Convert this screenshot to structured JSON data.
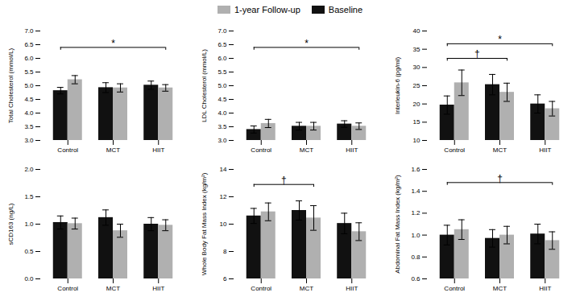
{
  "chart_data": [
    {
      "type": "bar",
      "ylabel": "Total Cholesterol (mmol/L)",
      "legend": "top",
      "categories": [
        "Control",
        "MCT",
        "HIIT"
      ],
      "series": [
        {
          "name": "Baseline",
          "color": "#111111",
          "values": [
            4.82,
            4.93,
            5.02
          ],
          "errors": [
            0.12,
            0.18,
            0.15
          ]
        },
        {
          "name": "1-year Follow-up",
          "color": "#b0b0b0",
          "values": [
            5.22,
            4.92,
            4.92
          ],
          "errors": [
            0.15,
            0.15,
            0.12
          ]
        }
      ],
      "ylim": [
        3.0,
        7.0
      ],
      "yticks": [
        {
          "value": 3.0,
          "label": "3.0"
        },
        3.5,
        {
          "value": 4.0,
          "label": "4.0"
        },
        4.5,
        {
          "value": 5.0,
          "label": "5.0"
        },
        5.5,
        {
          "value": 6.0,
          "label": "6.0"
        },
        6.5,
        {
          "value": 7.0,
          "label": "7.0"
        }
      ],
      "brackets": [
        {
          "from": "Control",
          "to": "HIIT",
          "y": 6.4,
          "label": "*"
        }
      ]
    },
    {
      "type": "bar",
      "ylabel": "LDL Cholesterol (mmol/L)",
      "categories": [
        "Control",
        "MCT",
        "HIIT"
      ],
      "series": [
        {
          "name": "Baseline",
          "color": "#111111",
          "values": [
            3.4,
            3.52,
            3.6
          ],
          "errors": [
            0.13,
            0.14,
            0.12
          ]
        },
        {
          "name": "1-year Follow-up",
          "color": "#b0b0b0",
          "values": [
            3.62,
            3.52,
            3.52
          ],
          "errors": [
            0.15,
            0.14,
            0.12
          ]
        }
      ],
      "ylim": [
        3.0,
        7.0
      ],
      "yticks": [
        {
          "value": 3.0,
          "label": "3.0"
        },
        3.5,
        {
          "value": 4.0,
          "label": "4.0"
        },
        4.5,
        {
          "value": 5.0,
          "label": "5.0"
        },
        5.5,
        {
          "value": 6.0,
          "label": "6.0"
        },
        6.5,
        {
          "value": 7.0,
          "label": "7.0"
        }
      ],
      "brackets": [
        {
          "from": "Control",
          "to": "HIIT",
          "y": 6.4,
          "label": "*"
        }
      ]
    },
    {
      "type": "bar",
      "ylabel": "Interleukin-6 (pg/ml)",
      "categories": [
        "Control",
        "MCT",
        "HIIT"
      ],
      "series": [
        {
          "name": "Baseline",
          "color": "#111111",
          "values": [
            19.7,
            25.3,
            20.0
          ],
          "errors": [
            2.5,
            2.8,
            2.5
          ]
        },
        {
          "name": "1-year Follow-up",
          "color": "#b0b0b0",
          "values": [
            25.8,
            23.2,
            18.7
          ],
          "errors": [
            3.5,
            2.5,
            2.0
          ]
        }
      ],
      "ylim": [
        10,
        40
      ],
      "yticks": [
        10,
        15,
        20,
        25,
        30,
        35,
        40
      ],
      "brackets": [
        {
          "from": "Control",
          "to": "HIIT",
          "y": 36.5,
          "label": "*"
        },
        {
          "from": "Control",
          "to": "MCT",
          "y": 32.5,
          "label": "†"
        }
      ]
    },
    {
      "type": "bar",
      "ylabel": "sCD163 (ng/L)",
      "categories": [
        "Control",
        "MCT",
        "HIIT"
      ],
      "series": [
        {
          "name": "Baseline",
          "color": "#111111",
          "values": [
            1.03,
            1.12,
            1.0
          ],
          "errors": [
            0.12,
            0.14,
            0.12
          ]
        },
        {
          "name": "1-year Follow-up",
          "color": "#b0b0b0",
          "values": [
            1.01,
            0.88,
            0.98
          ],
          "errors": [
            0.1,
            0.12,
            0.1
          ]
        }
      ],
      "ylim": [
        0.0,
        2.0
      ],
      "yticks": [
        {
          "value": 0.0,
          "label": "0.0"
        },
        0.5,
        {
          "value": 1.0,
          "label": "1.0"
        },
        1.5,
        {
          "value": 2.0,
          "label": "2.0"
        }
      ],
      "brackets": []
    },
    {
      "type": "bar",
      "ylabel": "Whole Body Fat Mass Index (kg/m²)",
      "categories": [
        "Control",
        "MCT",
        "HIIT"
      ],
      "series": [
        {
          "name": "Baseline",
          "color": "#111111",
          "values": [
            10.6,
            11.0,
            10.05
          ],
          "errors": [
            0.55,
            0.7,
            0.75
          ]
        },
        {
          "name": "1-year Follow-up",
          "color": "#b0b0b0",
          "values": [
            10.9,
            10.45,
            9.45
          ],
          "errors": [
            0.65,
            0.9,
            0.65
          ]
        }
      ],
      "ylim": [
        6,
        14
      ],
      "yticks": [
        6,
        8,
        10,
        12,
        14
      ],
      "brackets": [
        {
          "from": "Control",
          "to": "MCT",
          "y": 12.9,
          "label": "†"
        }
      ]
    },
    {
      "type": "bar",
      "ylabel": "Abdominal Fat Mass Index (kg/m²)",
      "categories": [
        "Control",
        "MCT",
        "HIIT"
      ],
      "series": [
        {
          "name": "Baseline",
          "color": "#111111",
          "values": [
            1.0,
            0.97,
            1.01
          ],
          "errors": [
            0.09,
            0.08,
            0.09
          ]
        },
        {
          "name": "1-year Follow-up",
          "color": "#b0b0b0",
          "values": [
            1.05,
            1.0,
            0.95
          ],
          "errors": [
            0.09,
            0.08,
            0.08
          ]
        }
      ],
      "ylim": [
        0.6,
        1.6
      ],
      "yticks": [
        0.6,
        0.8,
        {
          "value": 1.0,
          "label": "1.0"
        },
        1.2,
        1.4,
        1.6
      ],
      "brackets": [
        {
          "from": "Control",
          "to": "HIIT",
          "y": 1.48,
          "label": "†"
        }
      ]
    }
  ]
}
